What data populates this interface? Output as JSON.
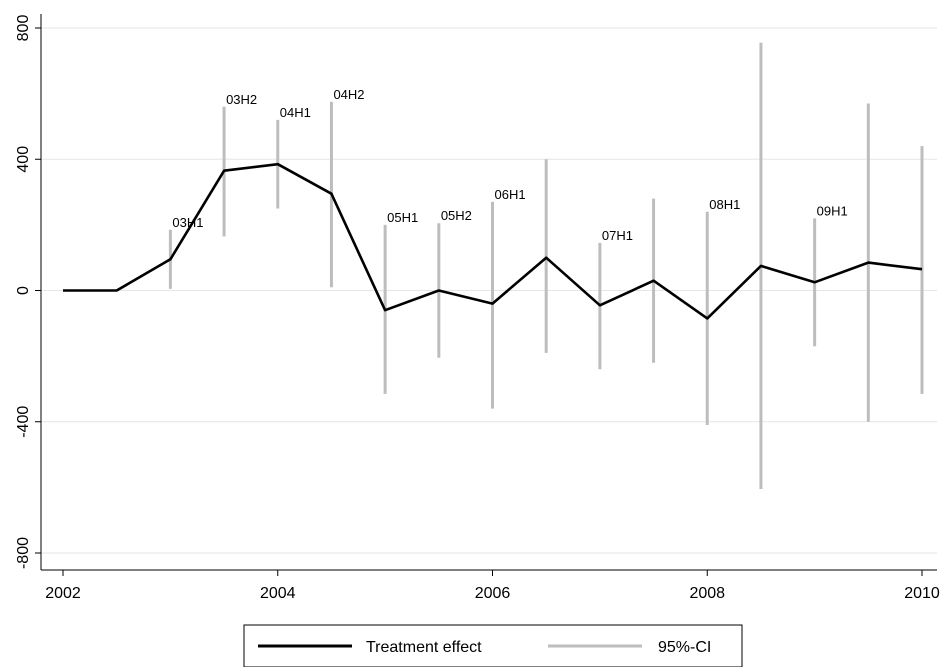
{
  "chart_data": {
    "type": "line",
    "title": "",
    "xlabel": "",
    "ylabel": "",
    "xlim": [
      2002,
      2010
    ],
    "ylim": [
      -800,
      800
    ],
    "x_ticks": [
      2002,
      2004,
      2006,
      2008,
      2010
    ],
    "y_ticks": [
      -800,
      -400,
      0,
      400,
      800
    ],
    "grid": "horizontal",
    "legend_position": "bottom",
    "colors": {
      "effect": "#000000",
      "ci": "#bdbdbd",
      "grid": "#e6e6e6"
    },
    "x": [
      2002,
      2002.5,
      2003,
      2003.5,
      2004,
      2004.5,
      2005,
      2005.5,
      2006,
      2006.5,
      2007,
      2007.5,
      2008,
      2008.5,
      2009,
      2009.5,
      2010
    ],
    "series": [
      {
        "name": "Treatment effect",
        "values": [
          0,
          0,
          95,
          365,
          385,
          295,
          -60,
          0,
          -40,
          100,
          -45,
          30,
          -85,
          75,
          25,
          85,
          65
        ]
      },
      {
        "name": "95%-CI",
        "lower": [
          null,
          null,
          5,
          165,
          250,
          10,
          -315,
          -205,
          -360,
          -190,
          -240,
          -220,
          -410,
          -605,
          -170,
          -400,
          -315
        ],
        "upper": [
          null,
          null,
          185,
          560,
          520,
          575,
          200,
          205,
          270,
          400,
          145,
          280,
          240,
          755,
          220,
          570,
          440
        ]
      }
    ],
    "annotations": [
      {
        "x": 2003,
        "text": "03H1"
      },
      {
        "x": 2003.5,
        "text": "03H2"
      },
      {
        "x": 2004,
        "text": "04H1"
      },
      {
        "x": 2004.5,
        "text": "04H2"
      },
      {
        "x": 2005,
        "text": "05H1"
      },
      {
        "x": 2005.5,
        "text": "05H2"
      },
      {
        "x": 2006,
        "text": "06H1"
      },
      {
        "x": 2007,
        "text": "07H1"
      },
      {
        "x": 2008,
        "text": "08H1"
      },
      {
        "x": 2009,
        "text": "09H1"
      }
    ]
  }
}
